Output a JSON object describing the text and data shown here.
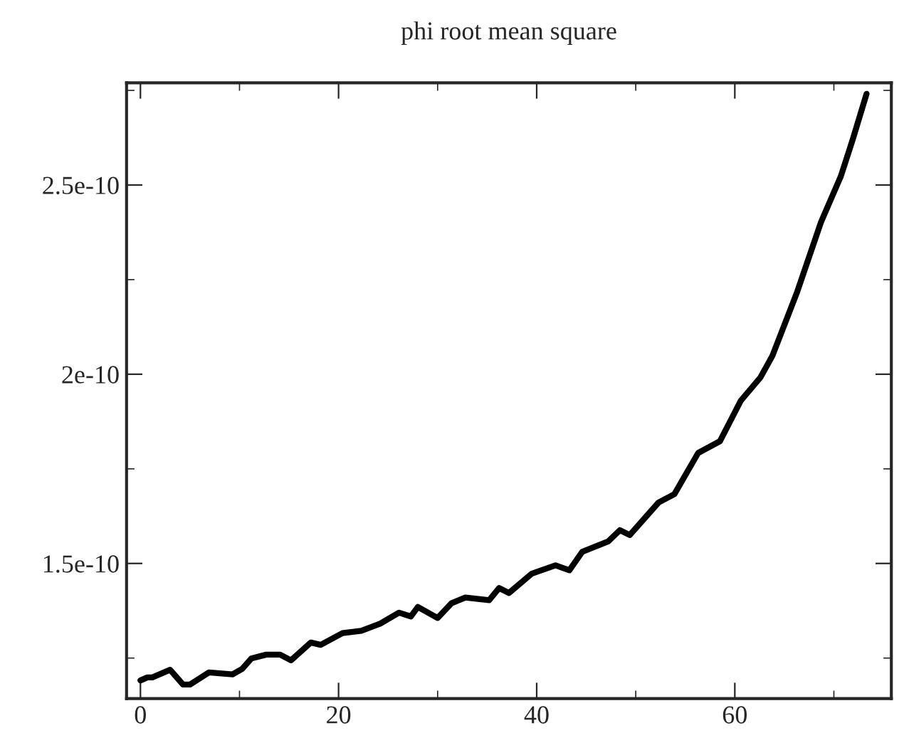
{
  "chart_data": {
    "type": "line",
    "title": "phi root mean square",
    "series": [
      {
        "color": "#000000",
        "x": [
          0,
          0.7,
          1.2,
          3.0,
          4.3,
          5.0,
          6.9,
          9.3,
          10.3,
          11.2,
          12.7,
          14.1,
          15.2,
          17.2,
          18.2,
          20.4,
          22.3,
          24.2,
          26.1,
          27.3,
          28.0,
          30.0,
          31.4,
          32.8,
          35.2,
          36.2,
          37.2,
          39.5,
          41.9,
          43.3,
          44.6,
          47.2,
          48.4,
          49.4,
          52.3,
          53.9,
          56.3,
          58.5,
          60.6,
          62.6,
          63.8,
          66.3,
          68.7,
          70.7,
          71.9,
          73.3
        ],
        "values": [
          1.191e-10,
          1.199e-10,
          1.199e-10,
          1.219e-10,
          1.18e-10,
          1.18e-10,
          1.212e-10,
          1.207e-10,
          1.222e-10,
          1.249e-10,
          1.259e-10,
          1.259e-10,
          1.244e-10,
          1.291e-10,
          1.285e-10,
          1.316e-10,
          1.322e-10,
          1.341e-10,
          1.37e-10,
          1.36e-10,
          1.385e-10,
          1.356e-10,
          1.395e-10,
          1.41e-10,
          1.403e-10,
          1.435e-10,
          1.422e-10,
          1.473e-10,
          1.495e-10,
          1.482e-10,
          1.531e-10,
          1.558e-10,
          1.588e-10,
          1.575e-10,
          1.661e-10,
          1.683e-10,
          1.792e-10,
          1.823e-10,
          1.93e-10,
          1.992e-10,
          2.049e-10,
          2.218e-10,
          2.402e-10,
          2.523e-10,
          2.62e-10,
          2.741e-10
        ]
      }
    ],
    "xlim": [
      -1.4,
      75.8
    ],
    "xticks": [
      0,
      20,
      40,
      60
    ],
    "ylim": [
      1.143e-10,
      2.77e-10
    ],
    "yticks": [
      {
        "value": 1.5e-10,
        "label": "1.5e-10"
      },
      {
        "value": 2e-10,
        "label": "2e-10"
      },
      {
        "value": 2.5e-10,
        "label": "2.5e-10"
      }
    ],
    "grid": false,
    "legend": false,
    "marker": "none",
    "line_style": "solid"
  }
}
